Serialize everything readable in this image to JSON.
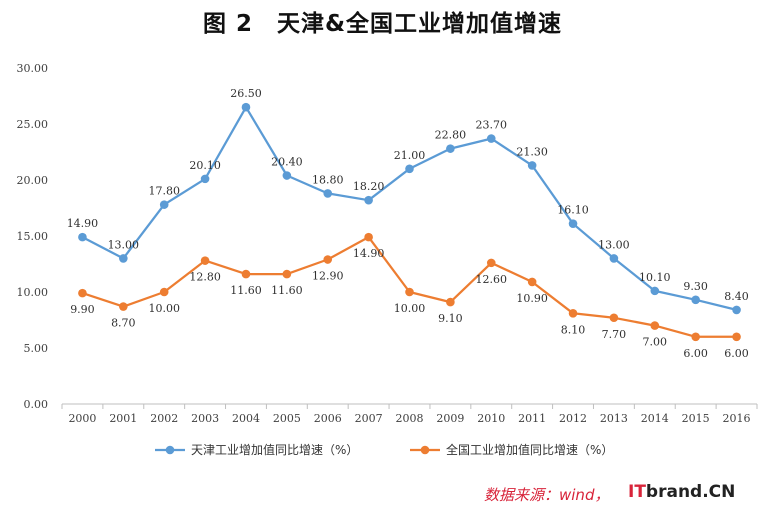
{
  "title": "图 2　天津&全国工业增加值增速",
  "source": "数据来源：wind，",
  "watermark": {
    "prefix": "IT",
    "rest": "brand.CN"
  },
  "chart_data": {
    "type": "line",
    "title": "图 2　天津&全国工业增加值增速",
    "xlabel": "",
    "ylabel": "",
    "categories": [
      "2000",
      "2001",
      "2002",
      "2003",
      "2004",
      "2005",
      "2006",
      "2007",
      "2008",
      "2009",
      "2010",
      "2011",
      "2012",
      "2013",
      "2014",
      "2015",
      "2016"
    ],
    "ylim": [
      0,
      30
    ],
    "yticks": [
      "0.00",
      "5.00",
      "10.00",
      "15.00",
      "20.00",
      "25.00",
      "30.00"
    ],
    "grid": false,
    "legend_position": "bottom",
    "series": [
      {
        "name": "天津工业增加值同比增速（%）",
        "color": "#5b9bd5",
        "label_position": "above",
        "values": [
          14.9,
          13.0,
          17.8,
          20.1,
          26.5,
          20.4,
          18.8,
          18.2,
          21.0,
          22.8,
          23.7,
          21.3,
          16.1,
          13.0,
          10.1,
          9.3,
          8.4
        ],
        "labels": [
          "14.90",
          "13.00",
          "17.80",
          "20.10",
          "26.50",
          "20.40",
          "18.80",
          "18.20",
          "21.00",
          "22.80",
          "23.70",
          "21.30",
          "16.10",
          "13.00",
          "10.10",
          "9.30",
          "8.40"
        ]
      },
      {
        "name": "全国工业增加值同比增速（%）",
        "color": "#ed7d31",
        "label_position": "below",
        "values": [
          9.9,
          8.7,
          10.0,
          12.8,
          11.6,
          11.6,
          12.9,
          14.9,
          10.0,
          9.1,
          12.6,
          10.9,
          8.1,
          7.7,
          7.0,
          6.0,
          6.0
        ],
        "labels": [
          "9.90",
          "8.70",
          "10.00",
          "12.80",
          "11.60",
          "11.60",
          "12.90",
          "14.90",
          "10.00",
          "9.10",
          "12.60",
          "10.90",
          "8.10",
          "7.70",
          "7.00",
          "6.00",
          "6.00"
        ]
      }
    ]
  }
}
